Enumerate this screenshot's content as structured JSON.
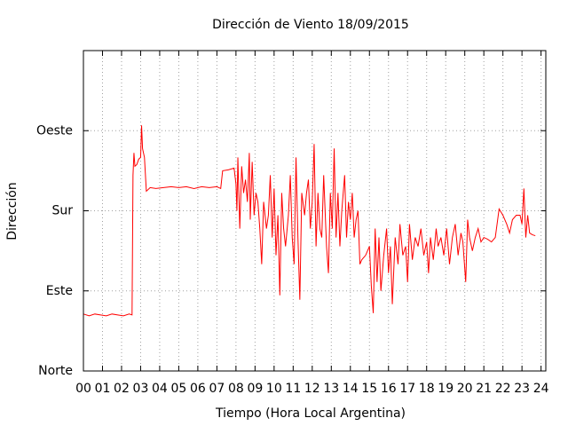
{
  "chart_data": {
    "type": "line",
    "title": "Dirección de Viento 18/09/2015",
    "xlabel": "Tiempo (Hora Local Argentina)",
    "ylabel": "Dirección",
    "xlim": [
      0,
      24.25
    ],
    "ylim": [
      0,
      360
    ],
    "xticks": [
      {
        "value": 0,
        "label": "00"
      },
      {
        "value": 1,
        "label": "01"
      },
      {
        "value": 2,
        "label": "02"
      },
      {
        "value": 3,
        "label": "03"
      },
      {
        "value": 4,
        "label": "04"
      },
      {
        "value": 5,
        "label": "05"
      },
      {
        "value": 6,
        "label": "06"
      },
      {
        "value": 7,
        "label": "07"
      },
      {
        "value": 8,
        "label": "08"
      },
      {
        "value": 9,
        "label": "09"
      },
      {
        "value": 10,
        "label": "10"
      },
      {
        "value": 11,
        "label": "11"
      },
      {
        "value": 12,
        "label": "12"
      },
      {
        "value": 13,
        "label": "13"
      },
      {
        "value": 14,
        "label": "14"
      },
      {
        "value": 15,
        "label": "15"
      },
      {
        "value": 16,
        "label": "16"
      },
      {
        "value": 17,
        "label": "17"
      },
      {
        "value": 18,
        "label": "18"
      },
      {
        "value": 19,
        "label": "19"
      },
      {
        "value": 20,
        "label": "20"
      },
      {
        "value": 21,
        "label": "21"
      },
      {
        "value": 22,
        "label": "22"
      },
      {
        "value": 23,
        "label": "23"
      },
      {
        "value": 24,
        "label": "24"
      }
    ],
    "yticks": [
      {
        "value": 0,
        "label": "Norte"
      },
      {
        "value": 90,
        "label": "Este"
      },
      {
        "value": 180,
        "label": "Sur"
      },
      {
        "value": 270,
        "label": "Oeste"
      }
    ],
    "grid": true,
    "color": "#ff0000",
    "x": [
      0,
      0.3,
      0.6,
      0.9,
      1.2,
      1.5,
      1.8,
      2.1,
      2.4,
      2.55,
      2.6,
      2.65,
      2.7,
      2.8,
      2.9,
      3.0,
      3.05,
      3.1,
      3.2,
      3.3,
      3.5,
      3.8,
      4.2,
      4.6,
      5.0,
      5.4,
      5.8,
      6.2,
      6.6,
      7.0,
      7.2,
      7.3,
      7.6,
      7.9,
      8.0,
      8.05,
      8.1,
      8.2,
      8.3,
      8.4,
      8.5,
      8.6,
      8.7,
      8.75,
      8.85,
      8.95,
      9.05,
      9.15,
      9.25,
      9.35,
      9.45,
      9.6,
      9.7,
      9.8,
      9.9,
      10.0,
      10.1,
      10.2,
      10.3,
      10.4,
      10.5,
      10.6,
      10.75,
      10.85,
      10.95,
      11.05,
      11.15,
      11.25,
      11.35,
      11.45,
      11.6,
      11.7,
      11.8,
      11.9,
      12.0,
      12.1,
      12.2,
      12.3,
      12.4,
      12.5,
      12.6,
      12.75,
      12.85,
      12.95,
      13.05,
      13.15,
      13.25,
      13.35,
      13.45,
      13.55,
      13.7,
      13.8,
      13.9,
      14.0,
      14.1,
      14.2,
      14.3,
      14.4,
      14.5,
      14.6,
      14.8,
      15.0,
      15.1,
      15.2,
      15.3,
      15.4,
      15.5,
      15.6,
      15.75,
      15.9,
      16.0,
      16.1,
      16.2,
      16.35,
      16.5,
      16.6,
      16.75,
      16.9,
      17.0,
      17.1,
      17.25,
      17.4,
      17.55,
      17.7,
      17.85,
      18.0,
      18.1,
      18.2,
      18.35,
      18.5,
      18.6,
      18.75,
      18.9,
      19.05,
      19.2,
      19.35,
      19.5,
      19.65,
      19.8,
      19.9,
      20.05,
      20.15,
      20.25,
      20.4,
      20.55,
      20.7,
      20.85,
      21.0,
      21.2,
      21.4,
      21.6,
      21.8,
      22.0,
      22.2,
      22.35,
      22.5,
      22.7,
      22.9,
      23.0,
      23.1,
      23.2,
      23.3,
      23.4,
      23.55,
      23.7
    ],
    "values": [
      64,
      62,
      64,
      63,
      62,
      64,
      63,
      62,
      64,
      63,
      220,
      245,
      230,
      232,
      238,
      240,
      276,
      250,
      240,
      202,
      206,
      205,
      206,
      207,
      206,
      207,
      205,
      207,
      206,
      207,
      205,
      225,
      226,
      228,
      210,
      180,
      240,
      160,
      230,
      200,
      215,
      190,
      245,
      170,
      235,
      175,
      200,
      190,
      160,
      120,
      190,
      160,
      175,
      220,
      150,
      205,
      130,
      175,
      85,
      200,
      160,
      140,
      175,
      220,
      150,
      120,
      240,
      150,
      80,
      200,
      175,
      200,
      215,
      160,
      190,
      255,
      140,
      200,
      160,
      150,
      220,
      140,
      110,
      200,
      160,
      250,
      150,
      200,
      140,
      180,
      220,
      150,
      190,
      170,
      200,
      150,
      170,
      180,
      120,
      125,
      130,
      140,
      95,
      65,
      160,
      100,
      150,
      90,
      130,
      160,
      110,
      140,
      75,
      150,
      120,
      165,
      130,
      140,
      100,
      165,
      125,
      150,
      140,
      160,
      130,
      145,
      110,
      150,
      125,
      160,
      140,
      150,
      130,
      160,
      120,
      150,
      165,
      130,
      155,
      145,
      100,
      170,
      150,
      135,
      150,
      160,
      145,
      150,
      148,
      145,
      150,
      182,
      175,
      165,
      155,
      170,
      175,
      175,
      165,
      205,
      150,
      175,
      155,
      153,
      152
    ]
  }
}
